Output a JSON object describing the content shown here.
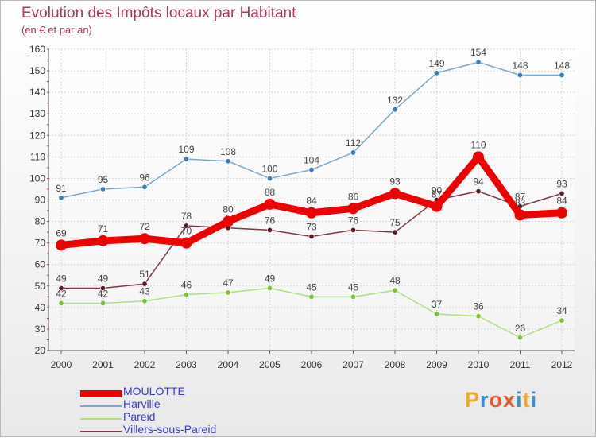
{
  "header": {
    "title": "Evolution des Impôts locaux par Habitant",
    "subtitle": "(en € et par an)"
  },
  "logo": {
    "text": "Proxiti",
    "colors": [
      "#f5a623",
      "#3a8fd0",
      "#e85c2c",
      "#e85c2c",
      "#3a8fd0",
      "#f5a623",
      "#3a8fd0"
    ]
  },
  "chart_data": {
    "type": "line",
    "title": "Evolution des Impôts locaux par Habitant",
    "subtitle": "(en € et par an)",
    "xlabel": "",
    "ylabel": "",
    "x": [
      "2000",
      "2001",
      "2002",
      "2003",
      "2004",
      "2005",
      "2006",
      "2007",
      "2008",
      "2009",
      "2010",
      "2011",
      "2012"
    ],
    "ylim": [
      20,
      160
    ],
    "yticks": [
      20,
      30,
      40,
      50,
      60,
      70,
      80,
      90,
      100,
      110,
      120,
      130,
      140,
      150,
      160
    ],
    "grid": true,
    "legend_position": "bottom-left",
    "series": [
      {
        "name": "Harville",
        "color": "#7aa8cc",
        "marker": "#3a7fb8",
        "values": [
          91,
          95,
          96,
          109,
          108,
          100,
          104,
          112,
          132,
          149,
          154,
          148,
          148
        ],
        "labels": [
          "91",
          "95",
          "96",
          "109",
          "108",
          "100",
          "104",
          "112",
          "132",
          "149",
          "154",
          "148",
          "148"
        ]
      },
      {
        "name": "Pareid",
        "color": "#aee080",
        "marker": "#7cc33a",
        "values": [
          42,
          42,
          43,
          46,
          47,
          49,
          45,
          45,
          48,
          37,
          36,
          26,
          34
        ],
        "labels": [
          "42",
          "42",
          "43",
          "46",
          "47",
          "49",
          "45",
          "45",
          "48",
          "37",
          "36",
          "26",
          "34"
        ]
      },
      {
        "name": "Villers-sous-Pareid",
        "color": "#7d3a44",
        "marker": "#5e1c24",
        "values": [
          49,
          49,
          51,
          78,
          77,
          76,
          73,
          76,
          75,
          90,
          94,
          87,
          93
        ],
        "labels": [
          "49",
          "49",
          "51",
          "78",
          "77",
          "76",
          "73",
          "76",
          "75",
          "90",
          "94",
          "87",
          "93"
        ]
      },
      {
        "name": "MOULOTTE",
        "color": "#ee0000",
        "marker": "#ee0000",
        "values": [
          69,
          71,
          72,
          70,
          80,
          88,
          84,
          86,
          93,
          87,
          110,
          83,
          84
        ],
        "labels": [
          "69",
          "71",
          "72",
          "70",
          "80",
          "88",
          "84",
          "86",
          "93",
          "87",
          "110",
          "83",
          "84"
        ]
      }
    ]
  },
  "legend": {
    "items": [
      {
        "label": "MOULOTTE",
        "color": "#ee0000",
        "text_color": "#3a3ad6",
        "thickness": 9
      },
      {
        "label": "Harville",
        "color": "#7aa8cc",
        "text_color": "#3a3ad6",
        "thickness": 2
      },
      {
        "label": "Pareid",
        "color": "#aee080",
        "text_color": "#3a3ad6",
        "thickness": 2
      },
      {
        "label": "Villers-sous-Pareid",
        "color": "#7d3a44",
        "text_color": "#3a3ad6",
        "thickness": 2
      }
    ]
  }
}
